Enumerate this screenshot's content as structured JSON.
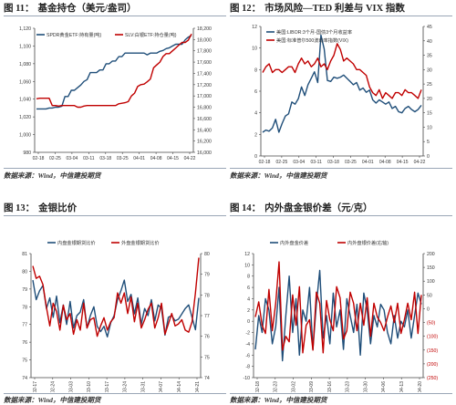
{
  "colors": {
    "blue": "#1f4e79",
    "red": "#c00000",
    "rule": "#9aa6b6"
  },
  "panels": [
    {
      "fig_label": "图 11：",
      "title": "基金持仓（美元/盎司）",
      "source": "数据来源：Wind，中信建投期货",
      "chart_data": {
        "type": "line",
        "x_ticks": [
          "02-18",
          "02-25",
          "03-04",
          "03-11",
          "03-18",
          "03-25",
          "04-01",
          "04-08",
          "04-15",
          "04-22"
        ],
        "y_ticks_left": [
          "980",
          "1,000",
          "1,020",
          "1,040",
          "1,060",
          "1,080",
          "1,100",
          "1,120"
        ],
        "y_ticks_right": [
          "16,000",
          "16,200",
          "16,400",
          "16,600",
          "16,800",
          "17,000",
          "17,200",
          "17,400",
          "17,600",
          "17,800",
          "18,000",
          "18,200"
        ],
        "ylim_left": [
          980,
          1120
        ],
        "ylim_right": [
          16000,
          18200
        ],
        "series": [
          {
            "name": "SPDR黄金ETF:持有量(吨)",
            "axis": "left",
            "values": [
              1029,
              1029,
              1029,
              1029,
              1030,
              1030,
              1031,
              1031,
              1032,
              1043,
              1043,
              1050,
              1050,
              1053,
              1056,
              1060,
              1062,
              1070,
              1070,
              1070,
              1073,
              1073,
              1080,
              1080,
              1083,
              1083,
              1088,
              1088,
              1092,
              1092,
              1092,
              1092,
              1092,
              1092,
              1092,
              1090,
              1092,
              1092,
              1092,
              1094,
              1095,
              1097,
              1098,
              1100,
              1102,
              1102,
              1102,
              1107,
              1110,
              1112
            ]
          },
          {
            "name": "SLV:白银ETF:持仓量(吨)",
            "axis": "right",
            "values": [
              16950,
              16960,
              16960,
              16960,
              16960,
              16830,
              16830,
              16820,
              16830,
              16830,
              16830,
              16830,
              16830,
              16800,
              16800,
              16820,
              16830,
              16830,
              16830,
              16830,
              16830,
              16830,
              16830,
              16830,
              16830,
              16830,
              16860,
              16870,
              16880,
              16900,
              17000,
              17050,
              17170,
              17200,
              17210,
              17250,
              17300,
              17500,
              17550,
              17600,
              17700,
              17750,
              17750,
              17800,
              17850,
              17900,
              17950,
              17950,
              17990,
              18100
            ]
          }
        ]
      }
    },
    {
      "fig_label": "图 12：",
      "title": "市场风险—TED 利差与 VIX 指数",
      "source": "数据来源：Wind，中信建投期货",
      "chart_data": {
        "type": "line",
        "x_ticks": [
          "02-18",
          "02-25",
          "03-04",
          "03-11",
          "03-18",
          "03-25",
          "04-01",
          "04-08",
          "04-15",
          "04-22"
        ],
        "y_ticks_left": [
          "0",
          "2",
          "4",
          "6",
          "8",
          "10",
          "12"
        ],
        "y_ticks_right": [
          "0",
          "5",
          "10",
          "15",
          "20",
          "25",
          "30",
          "35",
          "40",
          "45"
        ],
        "ylim_left": [
          0,
          12
        ],
        "ylim_right": [
          0,
          45
        ],
        "series": [
          {
            "name": "美国:LIBOR:3个月-国债3个月收益率",
            "axis": "left",
            "values": [
              2.2,
              2.4,
              2.3,
              2.6,
              3.4,
              2.2,
              3.0,
              3.7,
              3.9,
              5.0,
              4.8,
              5.3,
              6.4,
              5.6,
              6.6,
              7.2,
              7.8,
              6.8,
              11.2,
              9.9,
              7.0,
              6.9,
              7.3,
              7.2,
              7.3,
              7.5,
              7.2,
              6.9,
              6.6,
              6.8,
              6.1,
              6.3,
              5.9,
              6.1,
              5.2,
              4.9,
              5.2,
              5.0,
              4.8,
              5.0,
              4.4,
              4.6,
              4.1,
              4.0,
              4.4,
              4.6,
              4.3,
              4.1,
              4.3,
              4.7
            ]
          },
          {
            "name": "美国:标准普尔500波动率指数(VIX)",
            "axis": "right",
            "values": [
              29,
              31,
              32,
              29,
              30,
              30,
              29,
              30,
              31,
              31,
              29,
              32,
              34,
              32,
              33,
              31,
              32,
              34,
              31,
              32,
              30,
              33,
              35,
              39,
              37,
              33,
              34,
              33,
              32,
              30,
              30,
              29,
              28,
              24,
              22,
              21,
              23,
              20,
              22,
              21,
              20,
              22,
              22,
              21,
              23,
              22,
              22,
              21,
              20,
              23
            ]
          }
        ]
      }
    },
    {
      "fig_label": "图 13：",
      "title": "金银比价",
      "source": "数据来源：Wind，中信建投期货",
      "chart_data": {
        "type": "line",
        "x_ticks": [
          "02-17",
          "02-24",
          "03-03",
          "03-10",
          "03-17",
          "03-24",
          "03-31",
          "04-07",
          "04-14",
          "04-21"
        ],
        "y_ticks_left": [
          "74",
          "75",
          "76",
          "77",
          "78",
          "79",
          "80",
          "81"
        ],
        "y_ticks_right": [
          "74",
          "75",
          "76",
          "77",
          "78",
          "79",
          "80"
        ],
        "ylim_left": [
          74,
          81
        ],
        "ylim_right": [
          74,
          80
        ],
        "series": [
          {
            "name": "内盘金银期货比价",
            "axis": "left",
            "values": [
              79.5,
              78.4,
              78.9,
              79.2,
              77.9,
              78.5,
              77.4,
              78.6,
              77.1,
              78.1,
              77.0,
              78.3,
              76.8,
              77.5,
              77.7,
              78.4,
              76.8,
              77.5,
              78.0,
              76.9,
              76.6,
              76.9,
              76.3,
              77.1,
              77.5,
              78.4,
              78.9,
              79.5,
              78.3,
              78.7,
              77.6,
              78.5,
              77.0,
              77.9,
              77.5,
              78.4,
              77.2,
              78.1,
              77.9,
              76.4,
              77.4,
              77.5,
              77.2,
              77.3,
              77.6,
              77.9,
              78.1,
              77.4,
              76.7,
              78.5
            ]
          },
          {
            "name": "外盘金银期货比价",
            "axis": "right",
            "values": [
              79.4,
              78.8,
              78.9,
              78.5,
              77.4,
              76.5,
              77.6,
              77.2,
              76.3,
              77.5,
              76.8,
              77.1,
              76.1,
              76.8,
              76.3,
              77.6,
              76.4,
              76.8,
              76.9,
              76.0,
              76.5,
              76.9,
              76.3,
              76.7,
              76.9,
              78.1,
              77.6,
              78.1,
              77.1,
              77.9,
              76.7,
              77.6,
              76.4,
              76.8,
              77.3,
              77.6,
              76.4,
              76.9,
              77.6,
              76.1,
              76.6,
              77.1,
              76.5,
              76.6,
              76.8,
              76.3,
              76.2,
              76.7,
              78.1,
              79.8
            ]
          }
        ]
      }
    },
    {
      "fig_label": "图 14：",
      "title": "内外盘金银价差（元/克）",
      "source": "数据来源：Wind，中信建投期货",
      "chart_data": {
        "type": "line",
        "x_ticks": [
          "02-18",
          "02-23",
          "03-02",
          "03-09",
          "03-16",
          "03-23",
          "03-30",
          "04-06",
          "04-13",
          "04-20"
        ],
        "y_ticks_left": [
          "-10",
          "-8",
          "-6",
          "-4",
          "-2",
          "0",
          "2",
          "4",
          "6",
          "8",
          "10",
          "12"
        ],
        "y_ticks_right": [
          "(250)",
          "(200)",
          "(150)",
          "(100)",
          "(50)",
          "0",
          "50",
          "100",
          "150",
          "200"
        ],
        "ylim_left": [
          -10,
          12
        ],
        "ylim_right": [
          -250,
          200
        ],
        "series": [
          {
            "name": "内外盘金价差",
            "axis": "left",
            "values": [
              -5.0,
              1.0,
              -2.0,
              4.0,
              2.0,
              -4.0,
              -1.0,
              6.0,
              -7.0,
              1.0,
              8.0,
              -2.0,
              4.0,
              -6.0,
              2.0,
              0.0,
              6.0,
              -5.0,
              3.0,
              9.0,
              -3.0,
              1.0,
              -4.0,
              5.0,
              -1.0,
              2.0,
              -5.0,
              4.0,
              1.0,
              -2.0,
              3.0,
              -6.0,
              5.0,
              2.0,
              -4.0,
              1.0,
              -1.0,
              3.0,
              2.0,
              -2.0,
              -4.0,
              1.0,
              -3.0,
              0.0,
              -1.0,
              2.0,
              -3.0,
              1.0,
              5.0,
              3.0
            ]
          },
          {
            "name": "内外盘银价差(右轴)",
            "axis": "right",
            "values": [
              -30,
              25,
              -60,
              -90,
              70,
              -80,
              20,
              170,
              -150,
              -100,
              -120,
              50,
              -60,
              80,
              -160,
              -60,
              -40,
              -150,
              60,
              20,
              -160,
              30,
              -40,
              -80,
              80,
              40,
              -110,
              -80,
              60,
              20,
              -80,
              20,
              -60,
              40,
              -100,
              20,
              -30,
              -50,
              -80,
              -30,
              10,
              -50,
              20,
              -90,
              -40,
              20,
              -40,
              60,
              -90,
              50
            ]
          }
        ]
      }
    }
  ]
}
